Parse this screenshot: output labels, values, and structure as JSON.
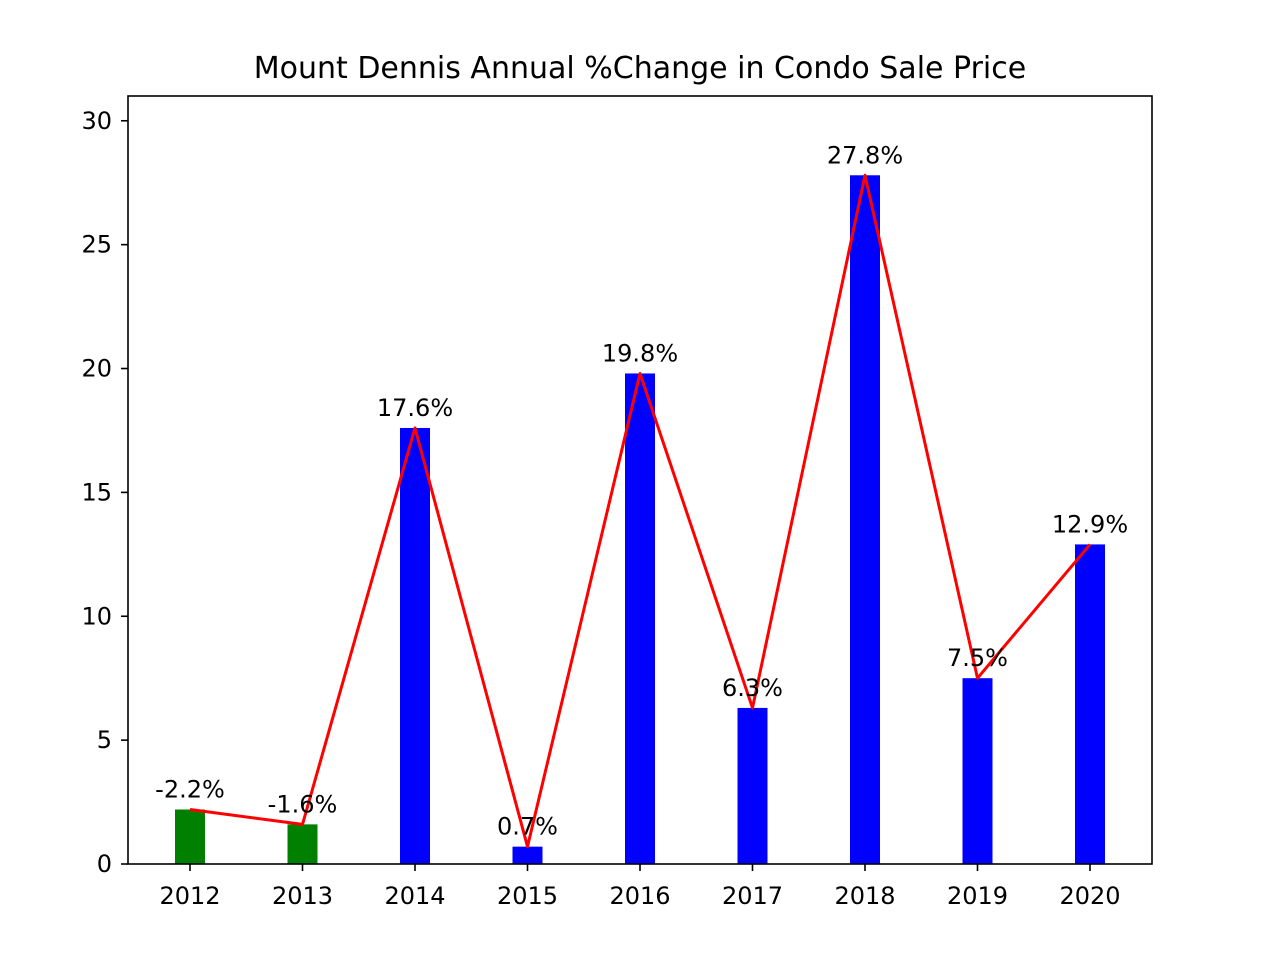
{
  "chart_data": {
    "type": "bar",
    "title": "Mount Dennis Annual %Change in Condo Sale Price",
    "xlabel": "",
    "ylabel": "",
    "categories": [
      "2012",
      "2013",
      "2014",
      "2015",
      "2016",
      "2017",
      "2018",
      "2019",
      "2020"
    ],
    "values": [
      2.2,
      1.6,
      17.6,
      0.7,
      19.8,
      6.3,
      27.8,
      7.5,
      12.9
    ],
    "labels": [
      "-2.2%",
      "-1.6%",
      "17.6%",
      "0.7%",
      "19.8%",
      "6.3%",
      "27.8%",
      "7.5%",
      "12.9%"
    ],
    "bar_colors": [
      "#008000",
      "#008000",
      "#0000ff",
      "#0000ff",
      "#0000ff",
      "#0000ff",
      "#0000ff",
      "#0000ff",
      "#0000ff"
    ],
    "line_color": "#ff0000",
    "ylim": [
      0,
      31
    ],
    "yticks": [
      0,
      5,
      10,
      15,
      20,
      25,
      30
    ],
    "grid": false,
    "legend": "none"
  }
}
